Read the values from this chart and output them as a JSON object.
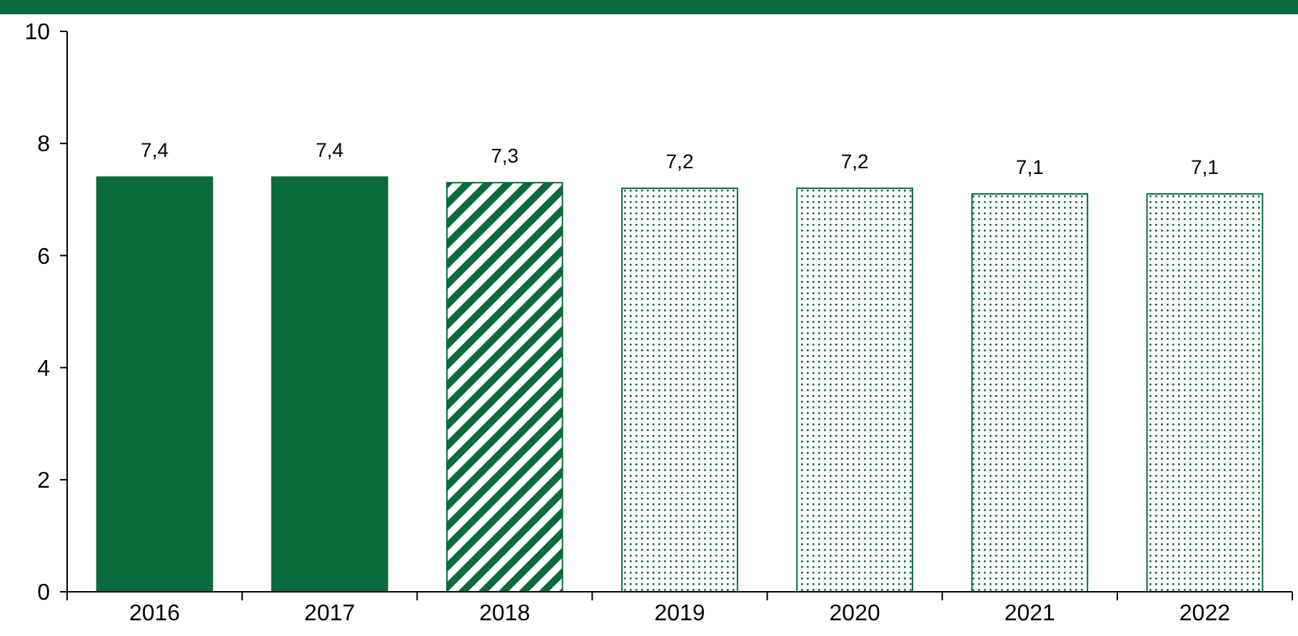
{
  "chart_data": {
    "type": "bar",
    "stacked": true,
    "categories": [
      "2016",
      "2017",
      "2018",
      "2019",
      "2020",
      "2021",
      "2022"
    ],
    "series": [
      {
        "color": "#0a6b3c",
        "values": [
          7.4,
          7.4,
          null,
          null,
          null,
          null,
          null
        ],
        "value_labels": [
          "7,4",
          "7,4",
          null,
          null,
          null,
          null,
          null
        ]
      },
      {
        "color": "#0a6b3c",
        "values": [
          null,
          null,
          7.3,
          null,
          null,
          null,
          null
        ],
        "value_labels": [
          null,
          null,
          "7,3",
          null,
          null,
          null,
          null
        ]
      },
      {
        "color": "#0a6b3c",
        "values": [
          null,
          null,
          null,
          7.2,
          7.2,
          7.1,
          7.1
        ],
        "value_labels": [
          null,
          null,
          null,
          "7,2",
          "7,2",
          "7,1",
          "7,1"
        ]
      }
    ],
    "ylim": [
      0,
      10
    ],
    "yticks": [
      0,
      2,
      4,
      6,
      8,
      10
    ],
    "grid": false
  }
}
